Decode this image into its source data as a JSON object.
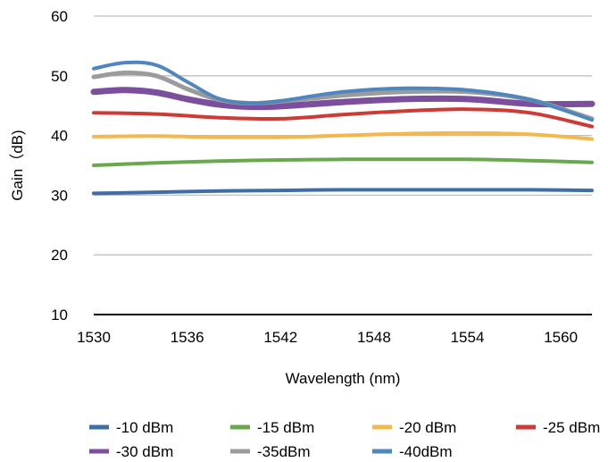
{
  "chart_data": {
    "type": "line",
    "title": "",
    "xlabel": "Wavelength (nm)",
    "ylabel": "Gain（dB)",
    "xlim": [
      1530,
      1562
    ],
    "ylim": [
      10,
      60
    ],
    "xticks": [
      1530,
      1536,
      1542,
      1548,
      1554,
      1560
    ],
    "yticks": [
      10,
      20,
      30,
      40,
      50,
      60
    ],
    "grid": "horizontal",
    "legend_position": "bottom",
    "series": [
      {
        "name": "-10 dBm",
        "color": "#3f6ea5",
        "x": [
          1530,
          1534,
          1538,
          1542,
          1546,
          1550,
          1554,
          1558,
          1562
        ],
        "y": [
          30.3,
          30.5,
          30.7,
          30.8,
          30.9,
          30.9,
          30.9,
          30.9,
          30.8
        ]
      },
      {
        "name": "-15 dBm",
        "color": "#6aa84f",
        "x": [
          1530,
          1534,
          1538,
          1542,
          1546,
          1550,
          1554,
          1558,
          1562
        ],
        "y": [
          35.0,
          35.4,
          35.7,
          35.9,
          36.0,
          36.0,
          36.0,
          35.8,
          35.5
        ]
      },
      {
        "name": "-20 dBm",
        "color": "#f1b84b",
        "x": [
          1530,
          1534,
          1538,
          1542,
          1546,
          1550,
          1554,
          1558,
          1562
        ],
        "y": [
          39.8,
          39.9,
          39.7,
          39.7,
          40.0,
          40.3,
          40.4,
          40.2,
          39.4
        ]
      },
      {
        "name": "-25 dBm",
        "color": "#cc3b36",
        "x": [
          1530,
          1534,
          1538,
          1542,
          1546,
          1550,
          1554,
          1558,
          1562
        ],
        "y": [
          43.8,
          43.6,
          43.0,
          42.8,
          43.5,
          44.1,
          44.4,
          43.8,
          41.5
        ]
      },
      {
        "name": "-30 dBm",
        "color": "#7b4f9d",
        "x": [
          1530,
          1532,
          1534,
          1536,
          1538,
          1540,
          1542,
          1546,
          1550,
          1554,
          1558,
          1562
        ],
        "y": [
          47.3,
          47.6,
          47.2,
          46.1,
          45.2,
          44.8,
          44.9,
          45.6,
          46.1,
          46.1,
          45.3,
          45.3
        ]
      },
      {
        "name": "-35dBm",
        "color": "#9b9b9b",
        "x": [
          1530,
          1532,
          1534,
          1536,
          1538,
          1540,
          1542,
          1546,
          1550,
          1554,
          1558,
          1562
        ],
        "y": [
          49.8,
          50.5,
          50.0,
          47.8,
          46.0,
          45.4,
          45.7,
          46.7,
          47.3,
          47.3,
          46.0,
          42.8
        ]
      },
      {
        "name": "-40dBm",
        "color": "#4f86bd",
        "x": [
          1530,
          1532,
          1534,
          1536,
          1538,
          1540,
          1542,
          1546,
          1550,
          1554,
          1558,
          1562
        ],
        "y": [
          51.2,
          52.2,
          51.8,
          49.0,
          46.2,
          45.4,
          45.8,
          47.3,
          47.9,
          47.6,
          46.0,
          42.6
        ]
      }
    ]
  }
}
